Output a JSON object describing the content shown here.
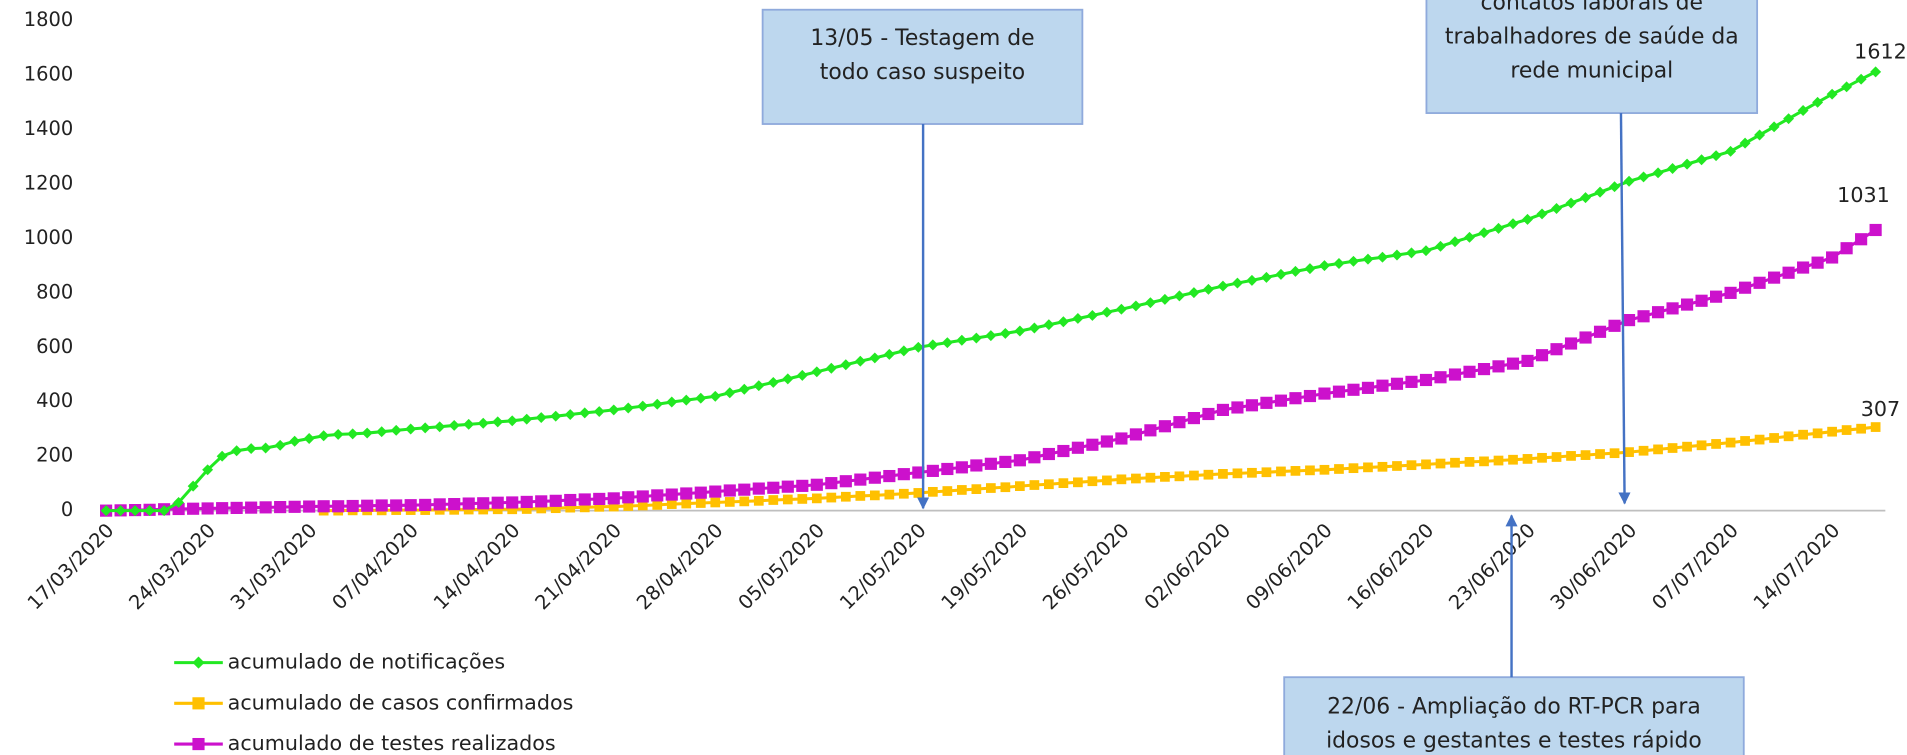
{
  "chart_data": {
    "type": "line",
    "categories": [
      "17/03/2020",
      null,
      null,
      null,
      null,
      null,
      null,
      "24/03/2020",
      null,
      null,
      null,
      null,
      null,
      null,
      "31/03/2020",
      null,
      null,
      null,
      null,
      null,
      null,
      "07/04/2020",
      null,
      null,
      null,
      null,
      null,
      null,
      "14/04/2020",
      null,
      null,
      null,
      null,
      null,
      null,
      "21/04/2020",
      null,
      null,
      null,
      null,
      null,
      null,
      "28/04/2020",
      null,
      null,
      null,
      null,
      null,
      null,
      "05/05/2020",
      null,
      null,
      null,
      null,
      null,
      null,
      "12/05/2020",
      null,
      null,
      null,
      null,
      null,
      null,
      "19/05/2020",
      null,
      null,
      null,
      null,
      null,
      null,
      "26/05/2020",
      null,
      null,
      null,
      null,
      null,
      null,
      "02/06/2020",
      null,
      null,
      null,
      null,
      null,
      null,
      "09/06/2020",
      null,
      null,
      null,
      null,
      null,
      null,
      "16/06/2020",
      null,
      null,
      null,
      null,
      null,
      null,
      "23/06/2020",
      null,
      null,
      null,
      null,
      null,
      null,
      "30/06/2020",
      null,
      null,
      null,
      null,
      null,
      null,
      "07/07/2020",
      null,
      null,
      null,
      null,
      null,
      null,
      "14/07/2020",
      null,
      null,
      null
    ],
    "series": [
      {
        "name": "acumulado de notificações",
        "color": "#22e822",
        "marker": "diamond",
        "values": [
          0,
          0,
          0,
          0,
          0,
          30,
          90,
          150,
          200,
          220,
          228,
          230,
          240,
          255,
          265,
          275,
          280,
          282,
          285,
          290,
          295,
          300,
          304,
          308,
          313,
          317,
          321,
          326,
          330,
          336,
          342,
          347,
          353,
          359,
          364,
          370,
          377,
          384,
          391,
          399,
          406,
          413,
          420,
          433,
          446,
          459,
          471,
          484,
          497,
          510,
          523,
          536,
          549,
          561,
          574,
          587,
          600,
          609,
          617,
          626,
          634,
          643,
          651,
          660,
          671,
          683,
          694,
          706,
          717,
          729,
          740,
          752,
          764,
          776,
          789,
          801,
          813,
          825,
          836,
          846,
          857,
          868,
          879,
          889,
          900,
          908,
          916,
          924,
          931,
          939,
          947,
          955,
          971,
          988,
          1004,
          1021,
          1037,
          1054,
          1070,
          1090,
          1110,
          1130,
          1150,
          1170,
          1190,
          1210,
          1226,
          1241,
          1257,
          1273,
          1289,
          1304,
          1320,
          1350,
          1380,
          1410,
          1440,
          1470,
          1500,
          1530,
          1557,
          1585,
          1612
        ]
      },
      {
        "name": "acumulado de casos confirmados",
        "color": "#ffc000",
        "marker": "square",
        "values": [
          null,
          null,
          null,
          null,
          null,
          null,
          null,
          null,
          null,
          null,
          null,
          null,
          null,
          null,
          null,
          0,
          0,
          1,
          1,
          1,
          2,
          2,
          2,
          3,
          3,
          4,
          4,
          5,
          5,
          6,
          8,
          9,
          11,
          12,
          14,
          15,
          17,
          19,
          21,
          24,
          26,
          28,
          30,
          32,
          34,
          36,
          39,
          41,
          43,
          45,
          48,
          51,
          54,
          56,
          59,
          62,
          65,
          69,
          72,
          76,
          79,
          83,
          86,
          90,
          94,
          97,
          101,
          104,
          108,
          111,
          115,
          118,
          121,
          124,
          126,
          129,
          132,
          135,
          137,
          139,
          141,
          144,
          146,
          148,
          150,
          153,
          156,
          159,
          161,
          164,
          167,
          170,
          173,
          176,
          179,
          181,
          184,
          187,
          190,
          194,
          197,
          201,
          204,
          208,
          211,
          215,
          220,
          225,
          230,
          235,
          240,
          245,
          250,
          256,
          261,
          267,
          273,
          279,
          284,
          290,
          296,
          301,
          307
        ]
      },
      {
        "name": "acumulado de testes realizados",
        "color": "#cc11cc",
        "marker": "square",
        "values": [
          0,
          1,
          2,
          3,
          5,
          6,
          7,
          8,
          9,
          10,
          11,
          12,
          13,
          14,
          15,
          16,
          16,
          17,
          18,
          19,
          19,
          20,
          21,
          23,
          24,
          26,
          27,
          29,
          30,
          32,
          34,
          36,
          39,
          41,
          43,
          45,
          49,
          52,
          56,
          59,
          63,
          66,
          70,
          74,
          77,
          81,
          84,
          88,
          91,
          95,
          101,
          108,
          114,
          121,
          127,
          134,
          140,
          146,
          153,
          159,
          166,
          172,
          179,
          185,
          196,
          208,
          219,
          231,
          242,
          254,
          265,
          280,
          295,
          310,
          325,
          340,
          355,
          370,
          379,
          387,
          396,
          404,
          413,
          421,
          430,
          437,
          444,
          451,
          459,
          466,
          473,
          480,
          490,
          500,
          510,
          520,
          530,
          540,
          550,
          571,
          593,
          614,
          636,
          657,
          679,
          700,
          714,
          729,
          743,
          757,
          771,
          786,
          800,
          819,
          837,
          856,
          874,
          893,
          911,
          930,
          964,
          997,
          1031
        ]
      }
    ],
    "ylim": [
      0,
      1800
    ],
    "yticks": [
      0,
      200,
      400,
      600,
      800,
      1000,
      1200,
      1400,
      1600,
      1800
    ],
    "grid": false,
    "legend": "bottom-left",
    "data_labels": "last",
    "annotations": [
      {
        "lines": [
          "13/05 - Testagem de",
          "todo caso suspeito"
        ]
      },
      {
        "lines": [
          "contatos laborais de",
          "trabalhadores de saúde da",
          "rede municipal"
        ]
      },
      {
        "lines": [
          "22/06 - Ampliação do RT-PCR para",
          "idosos e gestantes e testes rápido"
        ]
      }
    ]
  }
}
